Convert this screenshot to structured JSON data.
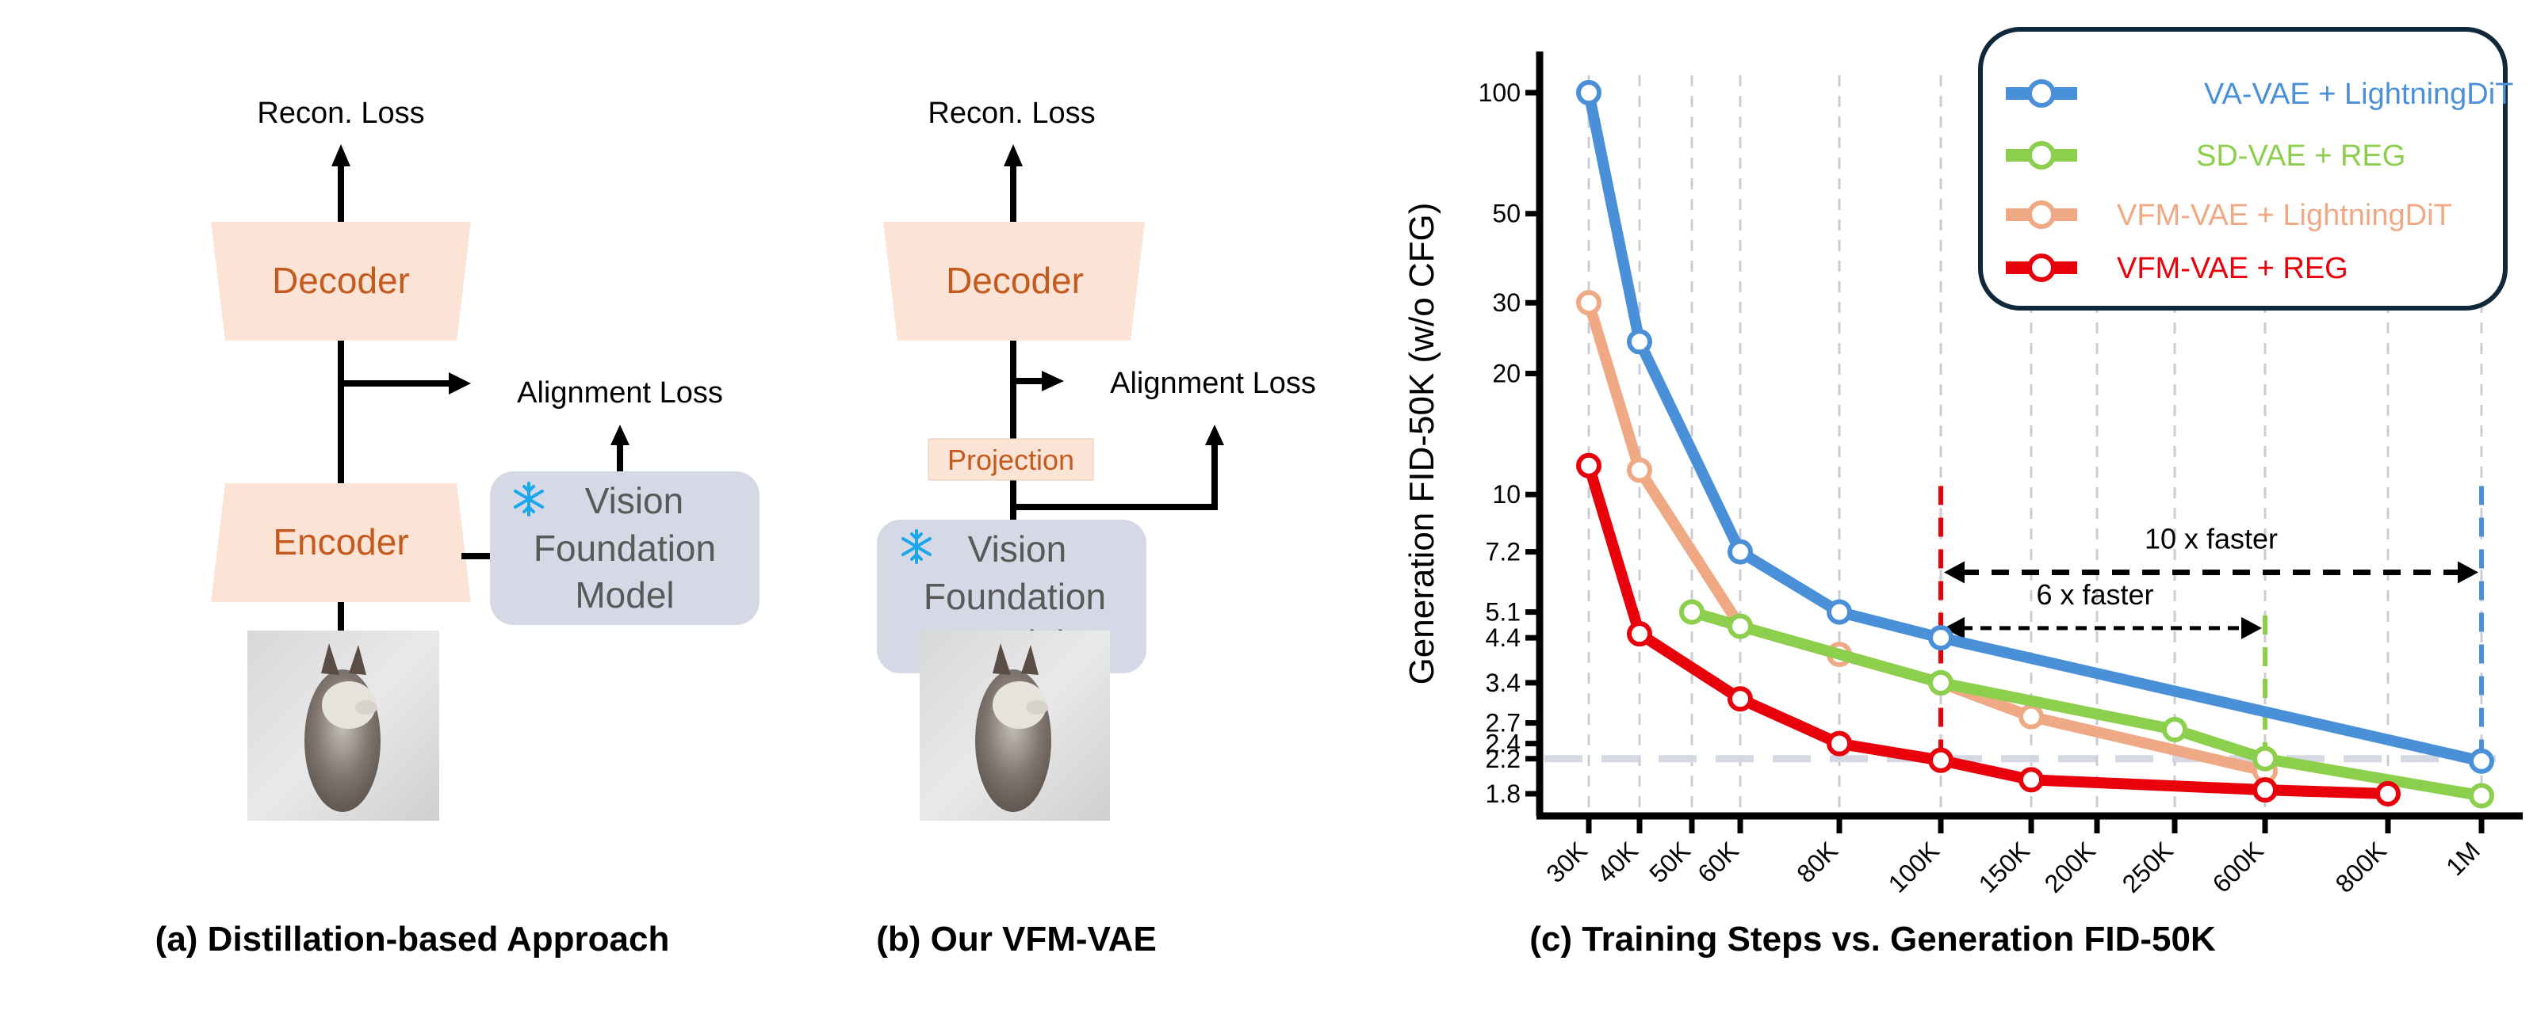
{
  "panel_a": {
    "caption": "(a) Distillation-based Approach",
    "recon_loss": "Recon. Loss",
    "decoder": "Decoder",
    "encoder": "Encoder",
    "alignment_loss": "Alignment Loss",
    "vfm_lines": [
      "Vision",
      "Foundation",
      "Model"
    ],
    "image_alt": "husky-dog-in-snow"
  },
  "panel_b": {
    "caption": "(b) Our VFM-VAE",
    "recon_loss": "Recon. Loss",
    "decoder": "Decoder",
    "projection": "Projection",
    "alignment_loss": "Alignment Loss",
    "vfm_lines": [
      "Vision",
      "Foundation",
      "Model"
    ],
    "image_alt": "husky-dog-in-snow"
  },
  "colors": {
    "block_fill": "#fbe3d6",
    "block_text": "#c55a1e",
    "vfm_fill": "#d5d9e5",
    "vfm_text": "#595959",
    "snowflake": "#1aa7ec",
    "blue": "#4a90d9",
    "green": "#8ccf4d",
    "salmon": "#f0a985",
    "red": "#e8000b",
    "reference": "#d5d8e3",
    "legend_border": "#10283a"
  },
  "chart_data": {
    "type": "line",
    "title": "(c) Training Steps vs. Generation FID-50K",
    "xlabel": "",
    "ylabel": "Generation FID-50K (w/o CFG)",
    "x_scale": "categorical",
    "y_scale": "log",
    "ylim": [
      1.65,
      130
    ],
    "categories": [
      "30K",
      "40K",
      "50K",
      "60K",
      "80K",
      "100K",
      "150K",
      "200K",
      "250K",
      "600K",
      "800K",
      "1M"
    ],
    "y_ticks": [
      100,
      50,
      30,
      20,
      10,
      7.2,
      5.1,
      4.4,
      3.4,
      2.7,
      2.4,
      2.2,
      1.8
    ],
    "grid": "vertical dashed",
    "legend_position": "top-right",
    "series": [
      {
        "name": "VA-VAE + LightningDiT",
        "color": "#4a90d9",
        "points": [
          [
            "30K",
            100
          ],
          [
            "40K",
            24
          ],
          [
            "60K",
            7.2
          ],
          [
            "80K",
            5.1
          ],
          [
            "100K",
            4.4
          ],
          [
            "1M",
            2.17
          ]
        ]
      },
      {
        "name": "SD-VAE + REG",
        "color": "#8ccf4d",
        "points": [
          [
            "50K",
            5.1
          ],
          [
            "60K",
            4.7
          ],
          [
            "100K",
            3.4
          ],
          [
            "250K",
            2.6
          ],
          [
            "600K",
            2.2
          ],
          [
            "1M",
            1.78
          ]
        ]
      },
      {
        "name": "VFM-VAE + LightningDiT",
        "color": "#f0a985",
        "points": [
          [
            "30K",
            30
          ],
          [
            "40K",
            11.5
          ],
          [
            "60K",
            4.7
          ],
          [
            "80K",
            4.0
          ],
          [
            "100K",
            3.4
          ],
          [
            "150K",
            2.8
          ],
          [
            "600K",
            2.05
          ]
        ]
      },
      {
        "name": "VFM-VAE + REG",
        "color": "#e8000b",
        "points": [
          [
            "30K",
            11.8
          ],
          [
            "40K",
            4.5
          ],
          [
            "60K",
            3.1
          ],
          [
            "80K",
            2.4
          ],
          [
            "100K",
            2.18
          ],
          [
            "150K",
            1.95
          ],
          [
            "600K",
            1.84
          ],
          [
            "800K",
            1.8
          ]
        ]
      }
    ],
    "reference_line": {
      "y": 2.2,
      "style": "dashed"
    },
    "markers": [
      {
        "x": "100K",
        "color": "#e8000b",
        "from_y": 2.18,
        "to_y": 10.5
      },
      {
        "x": "600K",
        "color": "#8ccf4d",
        "from_y": 2.2,
        "to_y": 5.0
      },
      {
        "x": "1M",
        "color": "#4a90d9",
        "from_y": 2.17,
        "to_y": 10.5
      }
    ],
    "annotations": [
      {
        "text": "10 x faster",
        "from": "100K",
        "to": "1M",
        "y": 6.4
      },
      {
        "text": "6 x faster",
        "from": "100K",
        "to": "600K",
        "y": 4.65
      }
    ]
  }
}
